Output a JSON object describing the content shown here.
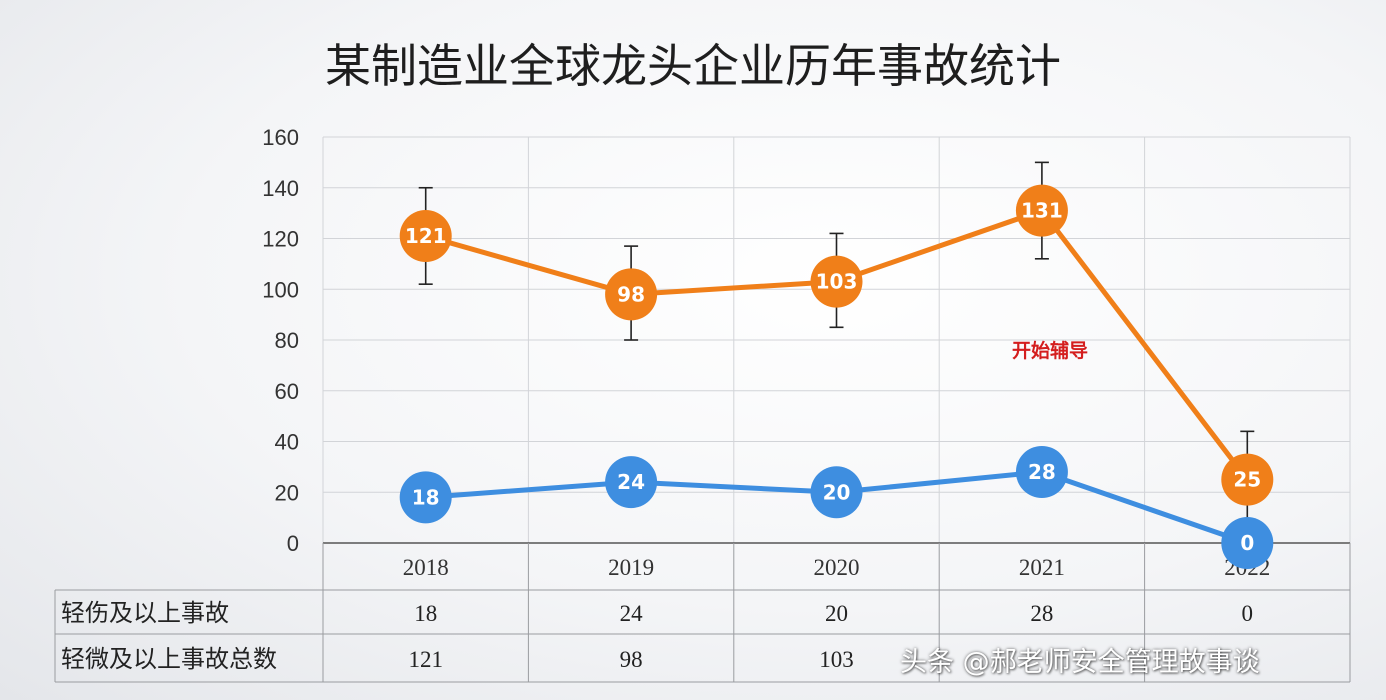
{
  "chart_data": {
    "type": "line",
    "title": "某制造业全球龙头企业历年事故统计",
    "categories": [
      "2018",
      "2019",
      "2020",
      "2021",
      "2022"
    ],
    "ylim": [
      0,
      160
    ],
    "yticks": [
      0,
      20,
      40,
      60,
      80,
      100,
      120,
      140,
      160
    ],
    "grid": true,
    "series": [
      {
        "name": "轻微及以上事故总数",
        "color": "#f07f19",
        "values": [
          121,
          98,
          103,
          131,
          25
        ],
        "error_low": [
          102,
          80,
          85,
          112,
          5
        ],
        "error_high": [
          140,
          117,
          122,
          150,
          44
        ]
      },
      {
        "name": "轻伤及以上事故",
        "color": "#3e8ee0",
        "values": [
          18,
          24,
          20,
          28,
          0
        ]
      }
    ],
    "annotations": [
      {
        "text": "开始辅导",
        "color": "#d41e1e"
      }
    ],
    "data_table": {
      "rows": [
        {
          "label": "轻伤及以上事故",
          "values": [
            "18",
            "24",
            "20",
            "28",
            "0"
          ]
        },
        {
          "label": "轻微及以上事故总数",
          "values": [
            "121",
            "98",
            "103",
            "",
            ""
          ]
        }
      ]
    }
  },
  "watermark": "头条 @郝老师安全管理故事谈"
}
